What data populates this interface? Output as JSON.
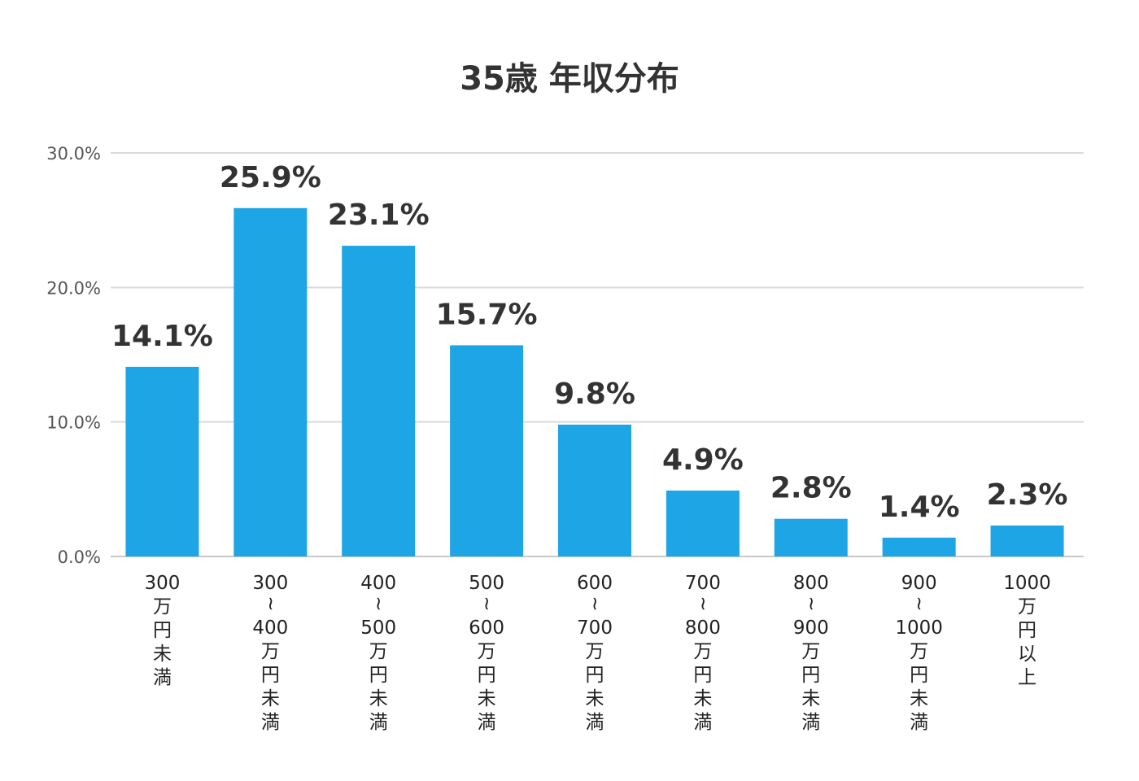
{
  "chart_data": {
    "type": "bar",
    "title": "35歳 年収分布",
    "categories": [
      [
        "300",
        "万",
        "円",
        "未",
        "満"
      ],
      [
        "300",
        "~",
        "400",
        "万",
        "円",
        "未",
        "満"
      ],
      [
        "400",
        "~",
        "500",
        "万",
        "円",
        "未",
        "満"
      ],
      [
        "500",
        "~",
        "600",
        "万",
        "円",
        "未",
        "満"
      ],
      [
        "600",
        "~",
        "700",
        "万",
        "円",
        "未",
        "満"
      ],
      [
        "700",
        "~",
        "800",
        "万",
        "円",
        "未",
        "満"
      ],
      [
        "800",
        "~",
        "900",
        "万",
        "円",
        "未",
        "満"
      ],
      [
        "900",
        "~",
        "1000",
        "万",
        "円",
        "未",
        "満"
      ],
      [
        "1000",
        "万",
        "円",
        "以",
        "上"
      ]
    ],
    "values": [
      14.1,
      25.9,
      23.1,
      15.7,
      9.8,
      4.9,
      2.8,
      1.4,
      2.3
    ],
    "data_labels": [
      "14.1%",
      "25.9%",
      "23.1%",
      "15.7%",
      "9.8%",
      "4.9%",
      "2.8%",
      "1.4%",
      "2.3%"
    ],
    "ylim": [
      0,
      30
    ],
    "yticks": [
      0,
      10,
      20,
      30
    ],
    "ytick_labels": [
      "0.0%",
      "10.0%",
      "20.0%",
      "30.0%"
    ],
    "grid": true,
    "bar_color": "#1da5e6",
    "xlabel": "",
    "ylabel": ""
  }
}
